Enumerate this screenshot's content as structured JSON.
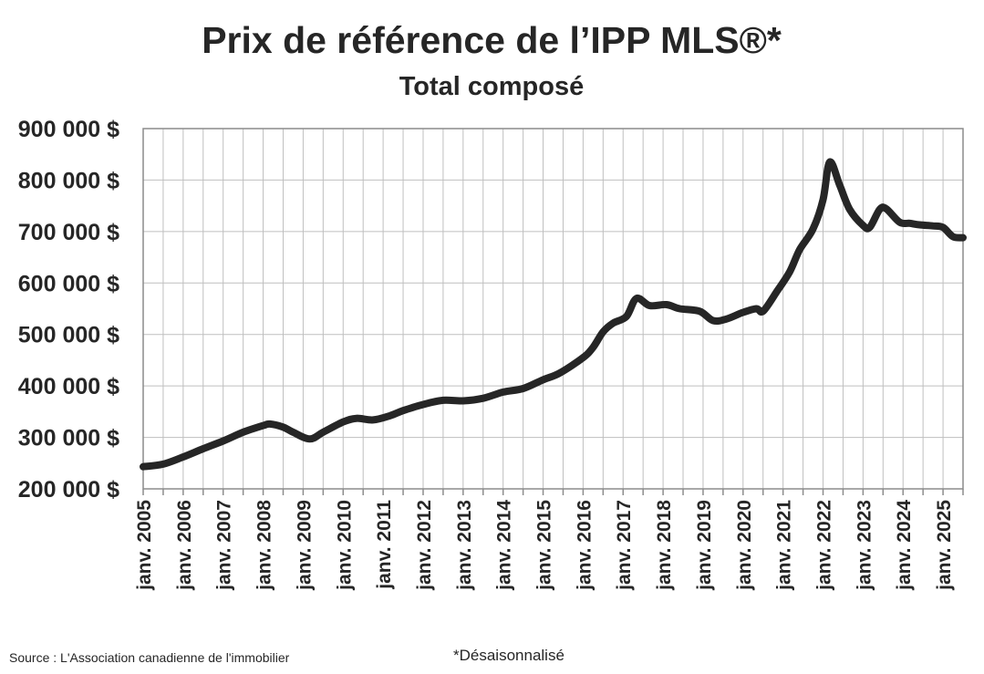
{
  "chart_data": {
    "type": "line",
    "title": "Prix de référence de l’IPP MLS®*",
    "subtitle": "Total composé",
    "source": "Source : L'Association canadienne de l'immobilier",
    "footnote": "*Désaisonnalisé",
    "ylim": [
      200000,
      900000
    ],
    "y_ticks": [
      900000,
      800000,
      700000,
      600000,
      500000,
      400000,
      300000,
      200000
    ],
    "y_tick_labels": [
      "900 000 $",
      "800 000 $",
      "700 000 $",
      "600 000 $",
      "500 000 $",
      "400 000 $",
      "300 000 $",
      "200 000 $"
    ],
    "x_range": [
      "2005-01",
      "2025-07"
    ],
    "x_tick_labels": [
      "janv. 2005",
      "janv. 2006",
      "janv. 2007",
      "janv. 2008",
      "janv. 2009",
      "janv. 2010",
      "janv. 2011",
      "janv. 2012",
      "janv. 2013",
      "janv. 2014",
      "janv. 2015",
      "janv. 2016",
      "janv. 2017",
      "janv. 2018",
      "janv. 2019",
      "janv. 2020",
      "janv. 2021",
      "janv. 2022",
      "janv. 2023",
      "janv. 2024",
      "janv. 2025"
    ],
    "grid": true,
    "line_color": "#262626",
    "series": [
      {
        "points": [
          [
            "2005-01",
            243000
          ],
          [
            "2005-07",
            248000
          ],
          [
            "2006-01",
            262000
          ],
          [
            "2006-07",
            278000
          ],
          [
            "2007-01",
            293000
          ],
          [
            "2007-07",
            310000
          ],
          [
            "2008-01",
            323000
          ],
          [
            "2008-03",
            326000
          ],
          [
            "2008-07",
            320000
          ],
          [
            "2008-10",
            310000
          ],
          [
            "2009-03",
            297000
          ],
          [
            "2009-07",
            310000
          ],
          [
            "2010-01",
            330000
          ],
          [
            "2010-05",
            337000
          ],
          [
            "2010-10",
            334000
          ],
          [
            "2011-03",
            342000
          ],
          [
            "2011-07",
            352000
          ],
          [
            "2012-01",
            364000
          ],
          [
            "2012-07",
            372000
          ],
          [
            "2013-01",
            371000
          ],
          [
            "2013-07",
            376000
          ],
          [
            "2014-01",
            388000
          ],
          [
            "2014-07",
            395000
          ],
          [
            "2015-01",
            412000
          ],
          [
            "2015-06",
            425000
          ],
          [
            "2016-01",
            455000
          ],
          [
            "2016-04",
            475000
          ],
          [
            "2016-07",
            505000
          ],
          [
            "2016-10",
            522000
          ],
          [
            "2017-02",
            535000
          ],
          [
            "2017-05",
            570000
          ],
          [
            "2017-09",
            556000
          ],
          [
            "2018-02",
            558000
          ],
          [
            "2018-06",
            550000
          ],
          [
            "2018-12",
            545000
          ],
          [
            "2019-04",
            527000
          ],
          [
            "2019-08",
            530000
          ],
          [
            "2020-01",
            543000
          ],
          [
            "2020-05",
            550000
          ],
          [
            "2020-07",
            545000
          ],
          [
            "2020-11",
            582000
          ],
          [
            "2021-03",
            622000
          ],
          [
            "2021-06",
            665000
          ],
          [
            "2021-10",
            705000
          ],
          [
            "2022-01",
            762000
          ],
          [
            "2022-03",
            835000
          ],
          [
            "2022-06",
            790000
          ],
          [
            "2022-09",
            743000
          ],
          [
            "2023-01",
            712000
          ],
          [
            "2023-03",
            708000
          ],
          [
            "2023-06",
            743000
          ],
          [
            "2023-08",
            744000
          ],
          [
            "2023-12",
            718000
          ],
          [
            "2024-03",
            716000
          ],
          [
            "2024-06",
            713000
          ],
          [
            "2024-10",
            711000
          ],
          [
            "2025-01",
            708000
          ],
          [
            "2025-04",
            690000
          ],
          [
            "2025-07",
            688000
          ]
        ]
      }
    ]
  }
}
